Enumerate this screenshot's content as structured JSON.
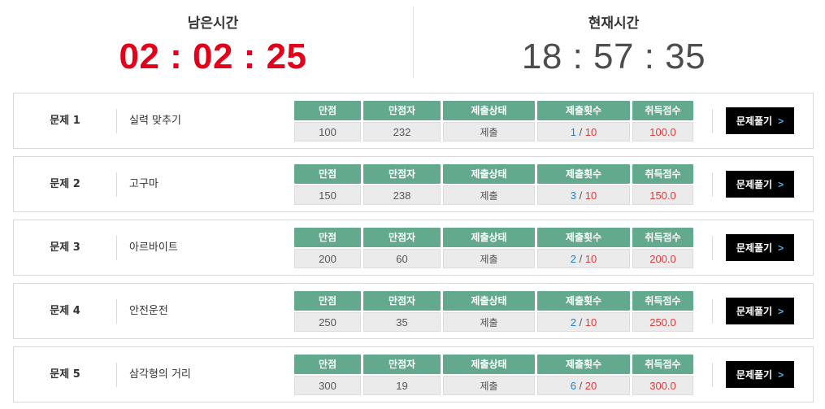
{
  "timer": {
    "remaining_label": "남은시간",
    "remaining_value": "02 : 02 : 25",
    "current_label": "현재시간",
    "current_value": "18 : 57 : 35"
  },
  "columns": {
    "score": "만점",
    "perfect_count": "만점자",
    "status": "제출상태",
    "submissions": "제출횟수",
    "earned": "취득점수"
  },
  "solve_label": "문제풀기",
  "chevron_icon": "chevron-right-icon",
  "colors": {
    "remaining_time": "#e3001b",
    "header_green": "#62a98e",
    "used_count": "#1f7fd1",
    "max_count": "#e03b3b",
    "button_bg": "#000000"
  },
  "problems": [
    {
      "number": "문제 1",
      "title": "실력 맞추기",
      "score": "100",
      "perfect": "232",
      "status": "제출",
      "used": "1",
      "max": "10",
      "earned": "100.0"
    },
    {
      "number": "문제 2",
      "title": "고구마",
      "score": "150",
      "perfect": "238",
      "status": "제출",
      "used": "3",
      "max": "10",
      "earned": "150.0"
    },
    {
      "number": "문제 3",
      "title": "아르바이트",
      "score": "200",
      "perfect": "60",
      "status": "제출",
      "used": "2",
      "max": "10",
      "earned": "200.0"
    },
    {
      "number": "문제 4",
      "title": "안전운전",
      "score": "250",
      "perfect": "35",
      "status": "제출",
      "used": "2",
      "max": "10",
      "earned": "250.0"
    },
    {
      "number": "문제 5",
      "title": "삼각형의 거리",
      "score": "300",
      "perfect": "19",
      "status": "제출",
      "used": "6",
      "max": "20",
      "earned": "300.0"
    }
  ]
}
